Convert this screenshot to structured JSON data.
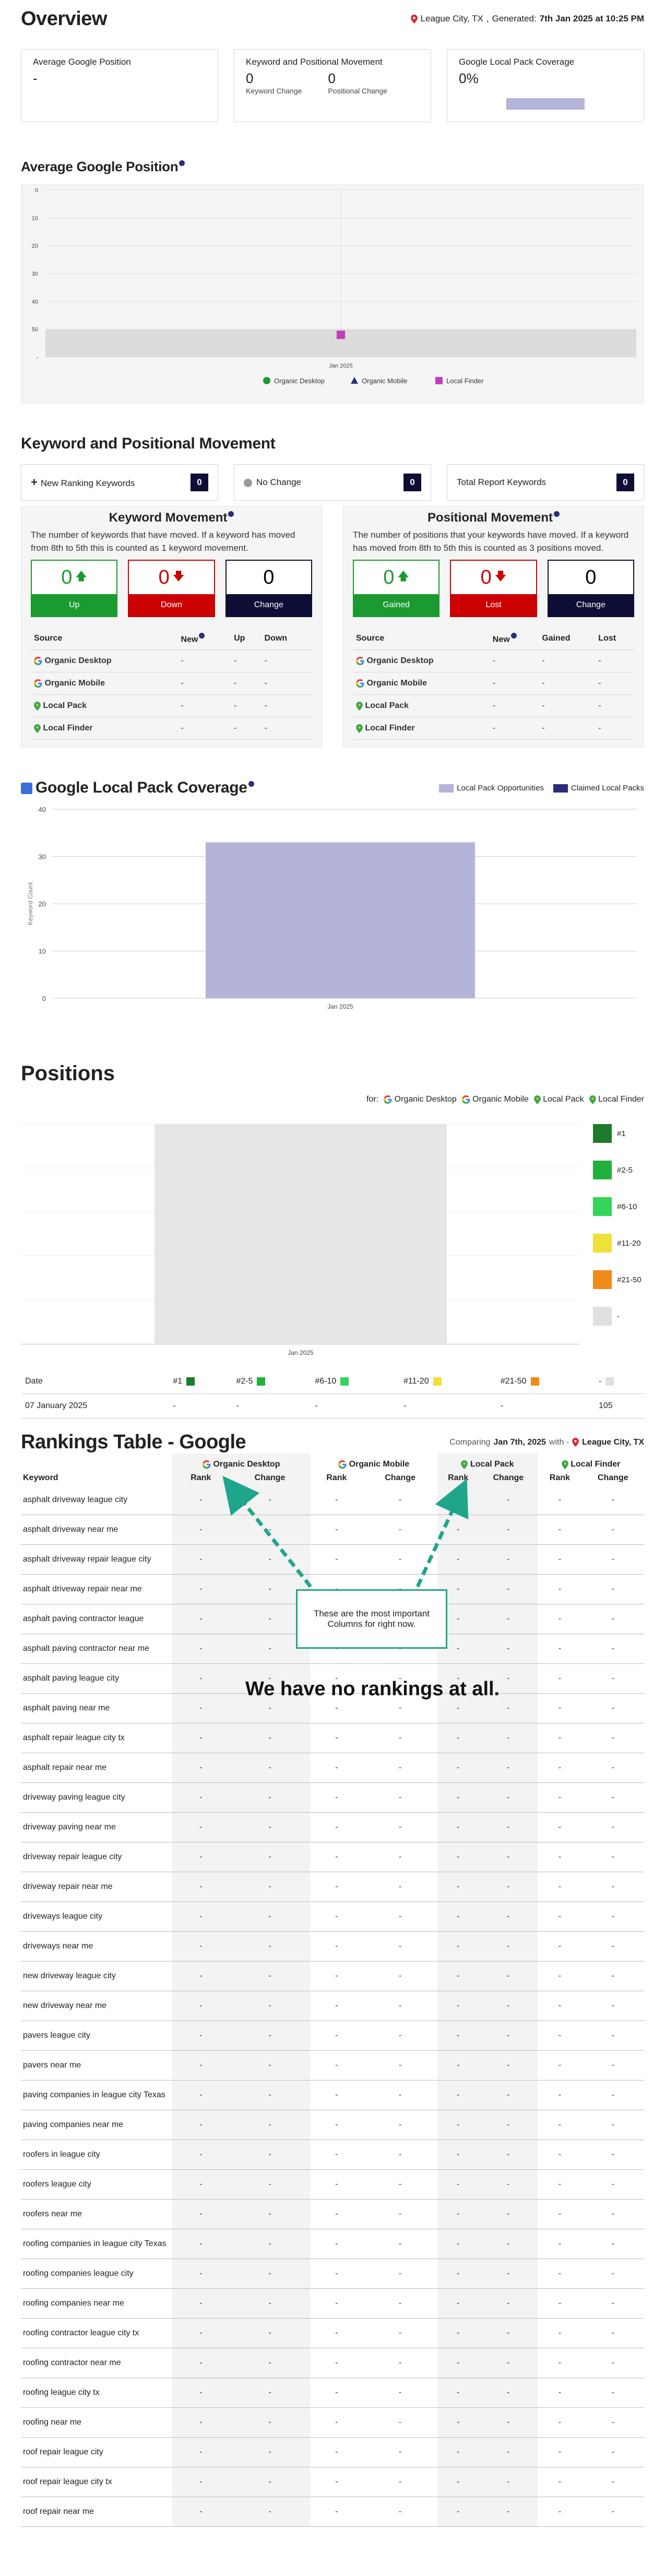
{
  "overview": {
    "title": "Overview",
    "location": "League City, TX",
    "generated_label": "Generated:",
    "generated_value": "7th Jan 2025 at 10:25 PM"
  },
  "cards": {
    "avg_title": "Average Google Position",
    "avg_value": "-",
    "kpm_title": "Keyword and Positional Movement",
    "kw_change_value": "0",
    "kw_change_label": "Keyword Change",
    "pos_change_value": "0",
    "pos_change_label": "Positional Change",
    "glp_title": "Google Local Pack Coverage",
    "glp_value": "0%"
  },
  "avg_position": {
    "title": "Average Google Position",
    "legend": [
      "Organic Desktop",
      "Organic Mobile",
      "Local Finder"
    ]
  },
  "kpm": {
    "title": "Keyword and Positional Movement",
    "new_label": "New Ranking Keywords",
    "new_count": "0",
    "nochange_label": "No Change",
    "nochange_count": "0",
    "total_label": "Total Report Keywords",
    "total_count": "0",
    "kw_panel": {
      "title": "Keyword Movement",
      "desc": "The number of keywords that have moved. If a keyword has moved from 8th to 5th this is counted as 1 keyword movement.",
      "boxes": [
        {
          "v": "0",
          "l": "Up"
        },
        {
          "v": "0",
          "l": "Down"
        },
        {
          "v": "0",
          "l": "Change"
        }
      ],
      "cols": [
        "Source",
        "New",
        "Up",
        "Down"
      ]
    },
    "pos_panel": {
      "title": "Positional Movement",
      "desc": "The number of positions that your keywords have moved. If a keyword has moved from 8th to 5th this is counted as 3 positions moved.",
      "boxes": [
        {
          "v": "0",
          "l": "Gained"
        },
        {
          "v": "0",
          "l": "Lost"
        },
        {
          "v": "0",
          "l": "Change"
        }
      ],
      "cols": [
        "Source",
        "New",
        "Gained",
        "Lost"
      ]
    },
    "sources": [
      "Organic Desktop",
      "Organic Mobile",
      "Local Pack",
      "Local Finder"
    ],
    "dash": "-"
  },
  "glp": {
    "title": "Google Local Pack Coverage",
    "legend_opps": "Local Pack Opportunities",
    "legend_claimed": "Claimed Local Packs",
    "colors": {
      "opps": "#b4b4d8",
      "claimed": "#2c2c7a"
    }
  },
  "chart_data": [
    {
      "type": "scatter",
      "title": "Average Google Position",
      "categories": [
        "Jan 2025"
      ],
      "yticks": [
        "0",
        "10",
        "20",
        "30",
        "40",
        "50",
        "-"
      ],
      "ylim": [
        0,
        60
      ],
      "y_inverted": true,
      "series": [
        {
          "name": "Organic Desktop",
          "values": [
            null
          ]
        },
        {
          "name": "Organic Mobile",
          "values": [
            null
          ]
        },
        {
          "name": "Local Finder",
          "values": [
            55
          ]
        }
      ]
    },
    {
      "type": "bar",
      "title": "Google Local Pack Coverage",
      "categories": [
        "Jan 2025"
      ],
      "ylabel": "Keyword Count",
      "ylim": [
        0,
        40
      ],
      "yticks": [
        0,
        10,
        20,
        30,
        40
      ],
      "series": [
        {
          "name": "Local Pack Opportunities",
          "values": [
            33
          ]
        },
        {
          "name": "Claimed Local Packs",
          "values": [
            0
          ]
        }
      ]
    },
    {
      "type": "bar",
      "title": "Positions",
      "categories": [
        "Jan 2025"
      ],
      "series": [
        {
          "name": "-",
          "values": [
            105
          ]
        }
      ]
    }
  ],
  "positions": {
    "title": "Positions",
    "for_label": "for:",
    "for_sources": [
      "Organic Desktop",
      "Organic Mobile",
      "Local Pack",
      "Local Finder"
    ],
    "buckets": [
      {
        "label": "#1",
        "color": "#1e7b2c"
      },
      {
        "label": "#2-5",
        "color": "#22b03c"
      },
      {
        "label": "#6-10",
        "color": "#35d45a"
      },
      {
        "label": "#11-20",
        "color": "#f0e03a"
      },
      {
        "label": "#21-50",
        "color": "#f08a1a"
      },
      {
        "label": "-",
        "color": "#e0e0e0"
      }
    ],
    "table_head": "Date",
    "row_date": "07 January 2025",
    "row_values": [
      "-",
      "-",
      "-",
      "-",
      "-",
      "105"
    ]
  },
  "rankings": {
    "title": "Rankings Table - Google",
    "comparing": "Comparing",
    "comparing_date": "Jan 7th, 2025",
    "with": "with -",
    "location": "League City, TX",
    "groups": [
      "Organic Desktop",
      "Organic Mobile",
      "Local Pack",
      "Local Finder"
    ],
    "sub": [
      "Rank",
      "Change"
    ],
    "kw_header": "Keyword",
    "no_rankings": "We have no rankings at all.",
    "tip": "These are the most important Columns for right now.",
    "keywords": [
      "asphalt driveway league city",
      "asphalt driveway near me",
      "asphalt driveway repair league city",
      "asphalt driveway repair near me",
      "asphalt paving contractor league",
      "asphalt paving contractor near me",
      "asphalt paving league city",
      "asphalt paving near me",
      "asphalt repair league city tx",
      "asphalt repair near me",
      "driveway paving league city",
      "driveway paving near me",
      "driveway repair league city",
      "driveway repair near me",
      "driveways league city",
      "driveways near me",
      "new driveway league city",
      "new driveway near me",
      "pavers league city",
      "pavers near me",
      "paving companies in league city Texas",
      "paving companies near me",
      "roofers in league city",
      "roofers league city",
      "roofers near me",
      "roofing companies in league city Texas",
      "roofing companies league city",
      "roofing companies near me",
      "roofing contractor league city tx",
      "roofing contractor near me",
      "roofing league city tx",
      "roofing near me",
      "roof repair league city",
      "roof repair league city tx",
      "roof repair near me"
    ]
  }
}
